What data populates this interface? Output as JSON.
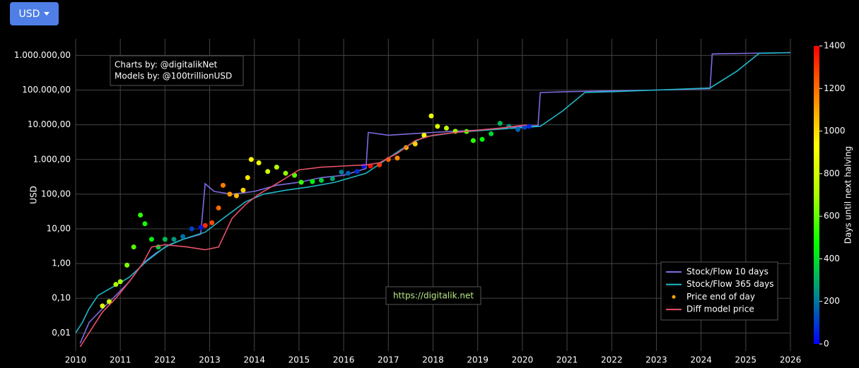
{
  "currency_button": "USD",
  "chart_data": {
    "type": "line",
    "y_label": "USD",
    "log_y": true,
    "grid": true,
    "annotations": [
      "Charts by: @digitalikNet",
      "Models by: @100trillionUSD",
      "https://digitalik.net"
    ],
    "colorbar": {
      "title": "Days until next halving",
      "lim": [
        0,
        1400
      ],
      "ticks": [
        0,
        200,
        400,
        600,
        800,
        1000,
        1200,
        1400
      ],
      "colorscale": [
        "#0000ff",
        "#008c8c",
        "#00ff00",
        "#aaff00",
        "#ffff00",
        "#ff8000",
        "#ff0000"
      ]
    },
    "xlim": [
      2010,
      2026
    ],
    "xticks": [
      2010,
      2011,
      2012,
      2013,
      2014,
      2015,
      2016,
      2017,
      2018,
      2019,
      2020,
      2021,
      2022,
      2023,
      2024,
      2025,
      2026
    ],
    "ylim": [
      0.003,
      3000000
    ],
    "yticks": [
      {
        "value": 0.01,
        "label": "0,01"
      },
      {
        "value": 0.1,
        "label": "0,10"
      },
      {
        "value": 1,
        "label": "1,00"
      },
      {
        "value": 10,
        "label": "10,00"
      },
      {
        "value": 100,
        "label": "100,00"
      },
      {
        "value": 1000,
        "label": "1.000,00"
      },
      {
        "value": 10000,
        "label": "10.000,00"
      },
      {
        "value": 100000,
        "label": "100.000,00"
      },
      {
        "value": 1000000,
        "label": "1.000.000,00"
      }
    ],
    "series": [
      {
        "name": "Stock/Flow 10 days",
        "color": "#7d6be0",
        "x": [
          2010.1,
          2010.3,
          2010.6,
          2010.9,
          2011.2,
          2011.5,
          2011.8,
          2012.1,
          2012.4,
          2012.8,
          2012.9,
          2013.1,
          2013.5,
          2014.0,
          2014.5,
          2015.0,
          2015.5,
          2016.0,
          2016.5,
          2016.55,
          2017.0,
          2017.5,
          2018.0,
          2018.5,
          2019.0,
          2019.5,
          2020.0,
          2020.35,
          2020.4,
          2021,
          2022,
          2023,
          2024.2,
          2024.25,
          2025,
          2026
        ],
        "values": [
          0.005,
          0.02,
          0.05,
          0.12,
          0.3,
          1,
          2,
          3.5,
          5,
          7,
          200,
          120,
          100,
          120,
          180,
          220,
          300,
          350,
          550,
          6000,
          5000,
          5500,
          6000,
          6500,
          7000,
          8000,
          9000,
          9500,
          85000,
          90000,
          95000,
          100000,
          110000,
          1100000,
          1150000,
          1200000
        ]
      },
      {
        "name": "Stock/Flow 365 days",
        "color": "#1fb8c8",
        "x": [
          2010.0,
          2010.15,
          2010.3,
          2010.5,
          2010.8,
          2011.2,
          2011.6,
          2012.0,
          2012.4,
          2012.9,
          2013.3,
          2013.8,
          2014.2,
          2014.7,
          2015.2,
          2015.8,
          2016.5,
          2016.9,
          2017.3,
          2017.8,
          2018.5,
          2019.5,
          2020.4,
          2020.9,
          2021.4,
          2022,
          2023,
          2024.2,
          2024.8,
          2025.3,
          2026
        ],
        "values": [
          0.01,
          0.02,
          0.05,
          0.12,
          0.2,
          0.4,
          1.2,
          3,
          5,
          8,
          20,
          60,
          100,
          130,
          160,
          220,
          400,
          900,
          2000,
          4500,
          6000,
          7500,
          9000,
          25000,
          85000,
          90000,
          100000,
          115000,
          350000,
          1150000,
          1200000
        ]
      },
      {
        "name": "Price end of day",
        "color": "#ffa500",
        "marker": "points",
        "x": [
          2010.6,
          2010.75,
          2010.9,
          2011.0,
          2011.15,
          2011.3,
          2011.45,
          2011.55,
          2011.7,
          2011.85,
          2012.0,
          2012.2,
          2012.4,
          2012.6,
          2012.8,
          2012.9,
          2013.05,
          2013.2,
          2013.3,
          2013.45,
          2013.6,
          2013.75,
          2013.85,
          2013.93,
          2014.1,
          2014.3,
          2014.5,
          2014.7,
          2014.9,
          2015.05,
          2015.3,
          2015.5,
          2015.75,
          2015.95,
          2016.1,
          2016.3,
          2016.45,
          2016.6,
          2016.8,
          2017.0,
          2017.2,
          2017.4,
          2017.6,
          2017.8,
          2017.96,
          2018.1,
          2018.3,
          2018.5,
          2018.75,
          2018.9,
          2019.1,
          2019.3,
          2019.5,
          2019.7,
          2019.9,
          2020.05,
          2020.15
        ],
        "values": [
          0.06,
          0.08,
          0.25,
          0.3,
          0.9,
          3,
          25,
          14,
          5,
          3,
          5,
          5,
          6,
          10,
          11,
          12.5,
          15,
          40,
          180,
          100,
          90,
          130,
          300,
          1000,
          800,
          450,
          600,
          400,
          350,
          220,
          230,
          250,
          280,
          430,
          400,
          450,
          650,
          650,
          700,
          1000,
          1100,
          2200,
          2800,
          5000,
          18000,
          9000,
          8000,
          6500,
          6400,
          3500,
          3800,
          5500,
          11000,
          9000,
          7300,
          8500,
          9000
        ],
        "days": [
          840,
          785,
          730,
          694,
          639,
          584,
          529,
          493,
          438,
          383,
          329,
          256,
          183,
          110,
          37,
          1321,
          1267,
          1212,
          1175,
          1121,
          1066,
          1011,
          975,
          945,
          883,
          810,
          737,
          664,
          591,
          537,
          445,
          372,
          281,
          208,
          153,
          80,
          26,
          1372,
          1299,
          1227,
          1153,
          1081,
          1007,
          934,
          876,
          825,
          752,
          679,
          588,
          533,
          460,
          387,
          314,
          241,
          168,
          113,
          77
        ]
      },
      {
        "name": "Diff model price",
        "color": "#e8506a",
        "x": [
          2010.1,
          2010.6,
          2010.9,
          2011.2,
          2011.5,
          2011.7,
          2012.0,
          2012.5,
          2012.9,
          2013.2,
          2013.5,
          2013.8,
          2014.1,
          2014.5,
          2015.0,
          2015.5,
          2016.0,
          2016.5,
          2016.8,
          2017.2,
          2017.6,
          2018.0,
          2018.5,
          2019.0,
          2019.5,
          2020.1
        ],
        "values": [
          0.004,
          0.04,
          0.1,
          0.3,
          1,
          3,
          3.5,
          3,
          2.5,
          3,
          20,
          50,
          100,
          200,
          500,
          600,
          650,
          700,
          800,
          1500,
          3500,
          5000,
          6000,
          7000,
          8000,
          10000
        ]
      }
    ]
  }
}
